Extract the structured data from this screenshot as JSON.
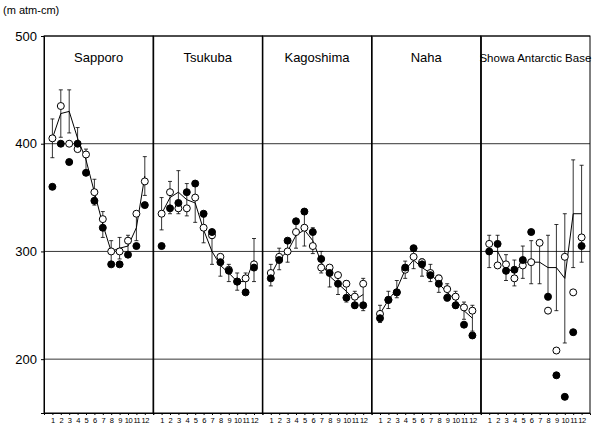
{
  "chart_data": [
    {
      "type": "line",
      "title": "Sapporo",
      "ylabel": "(m atm-cm)",
      "x": [
        1,
        2,
        3,
        4,
        5,
        6,
        7,
        8,
        9,
        10,
        11,
        12
      ],
      "xlim": [
        0,
        13
      ],
      "xticks": [
        1,
        2,
        3,
        4,
        5,
        6,
        7,
        8,
        9,
        10,
        11,
        12
      ],
      "ylim": [
        150,
        500
      ],
      "yticks": [
        200,
        300,
        400,
        500
      ],
      "grid": true,
      "series": [
        {
          "type": "line",
          "color": "#000000",
          "marker": "none",
          "line_style": "solid",
          "values": [
            405,
            428,
            430,
            405,
            385,
            355,
            325,
            300,
            303,
            305,
            322,
            370
          ],
          "errors": [
            18,
            22,
            20,
            10,
            10,
            12,
            12,
            10,
            10,
            10,
            12,
            18
          ]
        },
        {
          "type": "scatter",
          "color": "#000000",
          "marker": "open-circle",
          "values": [
            405,
            435,
            400,
            395,
            390,
            355,
            330,
            300,
            300,
            310,
            335,
            365
          ]
        },
        {
          "type": "scatter",
          "color": "#000000",
          "marker": "filled-circle",
          "values": [
            360,
            400,
            383,
            400,
            373,
            347,
            322,
            288,
            288,
            297,
            305,
            343
          ]
        }
      ]
    },
    {
      "type": "line",
      "title": "Tsukuba",
      "tick_labels": "x",
      "x": [
        1,
        2,
        3,
        4,
        5,
        6,
        7,
        8,
        9,
        10,
        11,
        12
      ],
      "xlim": [
        0,
        13
      ],
      "xticks": [
        1,
        2,
        3,
        4,
        5,
        6,
        7,
        8,
        9,
        10,
        11,
        12
      ],
      "ylim": [
        150,
        500
      ],
      "yticks": [
        200,
        300,
        400,
        500
      ],
      "grid": true,
      "series": [
        {
          "type": "line",
          "color": "#000000",
          "marker": "none",
          "line_style": "solid",
          "values": [
            335,
            350,
            355,
            348,
            345,
            320,
            300,
            287,
            280,
            272,
            272,
            292
          ],
          "errors": [
            15,
            15,
            20,
            15,
            18,
            12,
            12,
            10,
            8,
            8,
            8,
            20
          ]
        },
        {
          "type": "scatter",
          "color": "#000000",
          "marker": "open-circle",
          "values": [
            335,
            355,
            340,
            340,
            350,
            322,
            315,
            295,
            283,
            272,
            275,
            288
          ]
        },
        {
          "type": "scatter",
          "color": "#000000",
          "marker": "filled-circle",
          "values": [
            305,
            340,
            345,
            355,
            363,
            335,
            318,
            290,
            282,
            272,
            262,
            285
          ]
        }
      ]
    },
    {
      "type": "line",
      "title": "Kagoshima",
      "tick_labels": "x",
      "x": [
        1,
        2,
        3,
        4,
        5,
        6,
        7,
        8,
        9,
        10,
        11,
        12
      ],
      "xlim": [
        0,
        13
      ],
      "xticks": [
        1,
        2,
        3,
        4,
        5,
        6,
        7,
        8,
        9,
        10,
        11,
        12
      ],
      "ylim": [
        150,
        500
      ],
      "yticks": [
        200,
        300,
        400,
        500
      ],
      "grid": true,
      "series": [
        {
          "type": "line",
          "color": "#000000",
          "marker": "none",
          "line_style": "solid",
          "values": [
            278,
            293,
            300,
            315,
            320,
            310,
            290,
            277,
            270,
            263,
            255,
            260
          ],
          "errors": [
            10,
            10,
            10,
            12,
            15,
            12,
            10,
            10,
            10,
            10,
            8,
            15
          ]
        },
        {
          "type": "scatter",
          "color": "#000000",
          "marker": "open-circle",
          "values": [
            280,
            295,
            300,
            318,
            322,
            305,
            285,
            285,
            278,
            270,
            258,
            270
          ]
        },
        {
          "type": "scatter",
          "color": "#000000",
          "marker": "filled-circle",
          "values": [
            275,
            292,
            310,
            328,
            337,
            318,
            293,
            280,
            270,
            257,
            250,
            250
          ]
        }
      ]
    },
    {
      "type": "line",
      "title": "Naha",
      "tick_labels": "x",
      "x": [
        1,
        2,
        3,
        4,
        5,
        6,
        7,
        8,
        9,
        10,
        11,
        12
      ],
      "xlim": [
        0,
        13
      ],
      "xticks": [
        1,
        2,
        3,
        4,
        5,
        6,
        7,
        8,
        9,
        10,
        11,
        12
      ],
      "ylim": [
        150,
        500
      ],
      "yticks": [
        200,
        300,
        400,
        500
      ],
      "grid": true,
      "series": [
        {
          "type": "line",
          "color": "#000000",
          "marker": "none",
          "line_style": "solid",
          "values": [
            242,
            255,
            265,
            283,
            292,
            285,
            280,
            270,
            262,
            255,
            245,
            238
          ],
          "errors": [
            8,
            8,
            8,
            8,
            8,
            8,
            8,
            8,
            8,
            8,
            8,
            12
          ]
        },
        {
          "type": "scatter",
          "color": "#000000",
          "marker": "open-circle",
          "values": [
            242,
            255,
            262,
            283,
            295,
            290,
            280,
            275,
            265,
            258,
            248,
            245
          ]
        },
        {
          "type": "scatter",
          "color": "#000000",
          "marker": "filled-circle",
          "values": [
            238,
            255,
            262,
            285,
            303,
            288,
            278,
            270,
            257,
            250,
            232,
            222
          ]
        }
      ]
    },
    {
      "type": "line",
      "title": "Showa Antarctic Base",
      "tick_labels": "x",
      "x": [
        1,
        2,
        3,
        4,
        5,
        6,
        7,
        8,
        9,
        10,
        11,
        12
      ],
      "xlim": [
        0,
        13
      ],
      "xticks": [
        1,
        2,
        3,
        4,
        5,
        6,
        7,
        8,
        9,
        10,
        11,
        12
      ],
      "ylim": [
        150,
        500
      ],
      "yticks": [
        200,
        300,
        400,
        500
      ],
      "grid": true,
      "series": [
        {
          "type": "line",
          "color": "#000000",
          "marker": "none",
          "line_style": "solid",
          "values": [
            300,
            300,
            285,
            280,
            290,
            290,
            290,
            285,
            285,
            275,
            335,
            335
          ],
          "errors": [
            15,
            15,
            12,
            12,
            15,
            20,
            20,
            30,
            40,
            60,
            50,
            45
          ]
        },
        {
          "type": "scatter",
          "color": "#000000",
          "marker": "open-circle",
          "values": [
            307,
            287,
            288,
            275,
            287,
            290,
            308,
            245,
            208,
            295,
            262,
            313
          ]
        },
        {
          "type": "scatter",
          "color": "#000000",
          "marker": "filled-circle",
          "values": [
            300,
            307,
            282,
            283,
            292,
            318,
            null,
            258,
            185,
            165,
            225,
            305
          ]
        }
      ]
    }
  ]
}
